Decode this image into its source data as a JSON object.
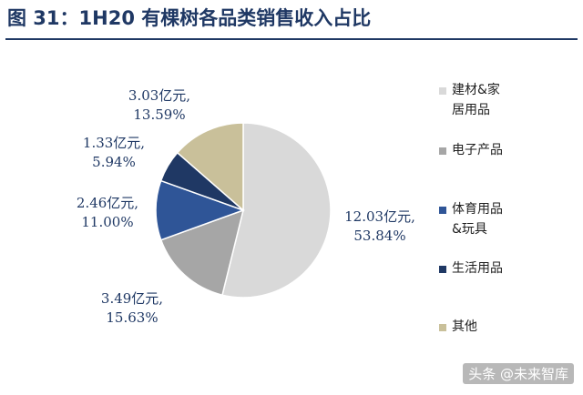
{
  "title": "图 31：1H20 有棵树各品类销售收入占比",
  "watermark": "头条 @未来智库",
  "chart_data": {
    "type": "pie",
    "title": "图 31：1H20 有棵树各品类销售收入占比",
    "unit": "亿元",
    "slices": [
      {
        "name": "建材&家居用品",
        "value": 12.03,
        "percent": 53.84,
        "color": "#d9d9d9",
        "label_line1": "12.03亿元,",
        "label_line2": "53.84%"
      },
      {
        "name": "电子产品",
        "value": 3.49,
        "percent": 15.63,
        "color": "#a6a6a6",
        "label_line1": "3.49亿元,",
        "label_line2": "15.63%"
      },
      {
        "name": "体育用品&玩具",
        "value": 2.46,
        "percent": 11.0,
        "color": "#2f5597",
        "label_line1": "2.46亿元,",
        "label_line2": "11.00%"
      },
      {
        "name": "生活用品",
        "value": 1.33,
        "percent": 5.94,
        "color": "#1f3864",
        "label_line1": "1.33亿元,",
        "label_line2": "5.94%"
      },
      {
        "name": "其他",
        "value": 3.03,
        "percent": 13.59,
        "color": "#c9c09a",
        "label_line1": "3.03亿元,",
        "label_line2": "13.59%"
      }
    ],
    "legend": {
      "placement": "right",
      "items": [
        "建材&家\n居用品",
        "电子产品",
        "体育用品\n&玩具",
        "生活用品",
        "其他"
      ]
    }
  }
}
